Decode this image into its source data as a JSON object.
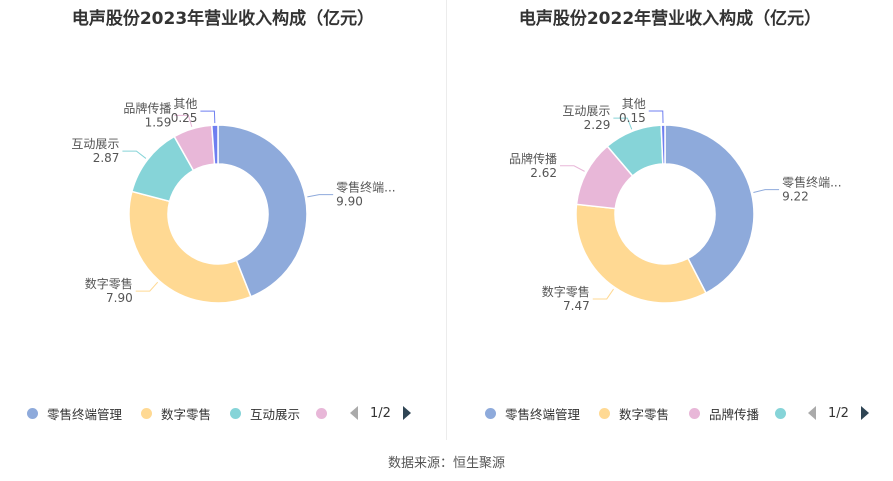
{
  "source": "数据来源：恒生聚源",
  "chart_data": [
    {
      "type": "pie",
      "title": "电声股份2023年营业收入构成（亿元）",
      "categories": [
        "零售终端管理",
        "数字零售",
        "互动展示",
        "品牌传播",
        "其他"
      ],
      "values": [
        9.9,
        7.9,
        2.87,
        1.59,
        0.25
      ],
      "slice_labels": [
        "零售终端...",
        "数字零售",
        "互动展示",
        "品牌传播",
        "其他"
      ],
      "value_labels": [
        "9.90",
        "7.90",
        "2.87",
        "1.59",
        "0.25"
      ],
      "colors": [
        "#8eaadb",
        "#ffd993",
        "#86d4d8",
        "#e8b7d8",
        "#6f7ff0"
      ],
      "legend": {
        "items": [
          "零售终端管理",
          "数字零售",
          "互动展示",
          ""
        ],
        "colors": [
          "#8eaadb",
          "#ffd993",
          "#86d4d8",
          "#e8b7d8"
        ],
        "page": "1/2",
        "placement": "bottom"
      }
    },
    {
      "type": "pie",
      "title": "电声股份2022年营业收入构成（亿元）",
      "categories": [
        "零售终端管理",
        "数字零售",
        "品牌传播",
        "互动展示",
        "其他"
      ],
      "values": [
        9.22,
        7.47,
        2.62,
        2.29,
        0.15
      ],
      "slice_labels": [
        "零售终端...",
        "数字零售",
        "品牌传播",
        "互动展示",
        "其他"
      ],
      "value_labels": [
        "9.22",
        "7.47",
        "2.62",
        "2.29",
        "0.15"
      ],
      "colors": [
        "#8eaadb",
        "#ffd993",
        "#e8b7d8",
        "#86d4d8",
        "#6f7ff0"
      ],
      "legend": {
        "items": [
          "零售终端管理",
          "数字零售",
          "品牌传播",
          ""
        ],
        "colors": [
          "#8eaadb",
          "#ffd993",
          "#e8b7d8",
          "#86d4d8"
        ],
        "page": "1/2",
        "placement": "bottom"
      }
    }
  ]
}
